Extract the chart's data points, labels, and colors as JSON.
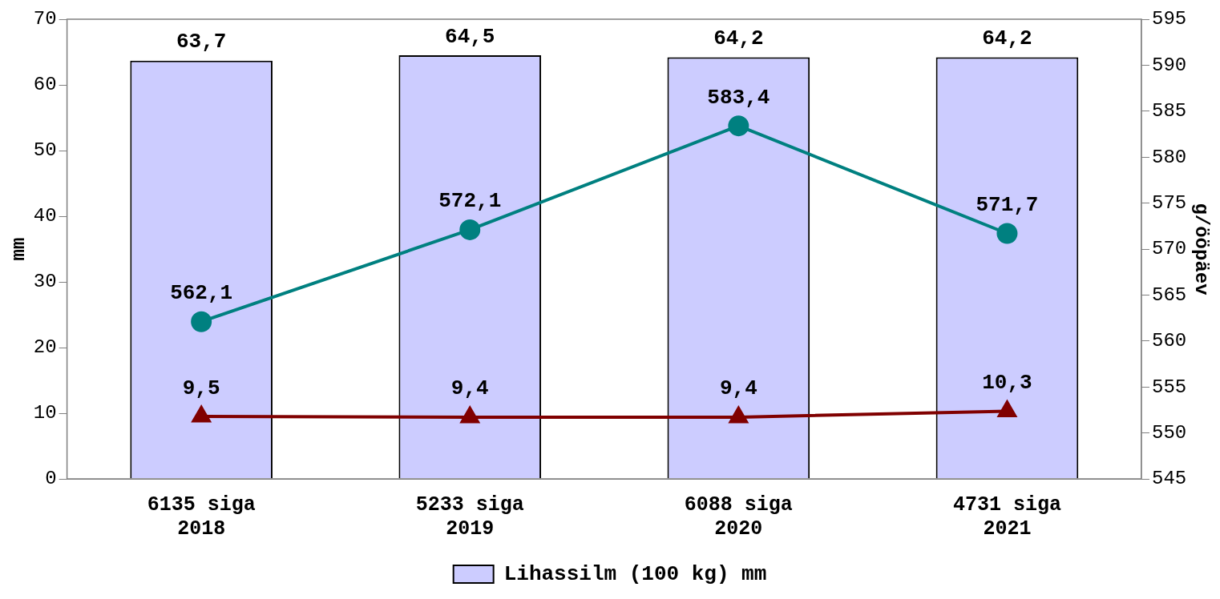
{
  "chart_data": {
    "type": "bar",
    "categories": [
      "6135 siga\n2018",
      "5233 siga\n2019",
      "6088 siga\n2020",
      "4731 siga\n2021"
    ],
    "series": [
      {
        "name": "Lihassilm (100 kg) mm",
        "color": "#ccccff",
        "values": [
          63.7,
          64.5,
          64.2,
          64.2
        ],
        "value_labels": [
          "63,7",
          "64,5",
          "64,2",
          "64,2"
        ]
      },
      {
        "type": "line",
        "axis": "y2",
        "color": "#008080",
        "marker": "circle",
        "values": [
          562.1,
          572.1,
          583.4,
          571.7
        ],
        "value_labels": [
          "562,1",
          "572,1",
          "583,4",
          "571,7"
        ]
      },
      {
        "type": "line",
        "color": "#800000",
        "marker": "triangle",
        "values": [
          9.5,
          9.4,
          9.4,
          10.3
        ],
        "value_labels": [
          "9,5",
          "9,4",
          "9,4",
          "10,3"
        ]
      }
    ],
    "ylabel": "mm",
    "y2label": "g/ööpäev",
    "ylim": [
      0,
      70
    ],
    "yticks": [
      0,
      10,
      20,
      30,
      40,
      50,
      60,
      70
    ],
    "y2lim": [
      545,
      595
    ],
    "y2ticks": [
      545,
      550,
      555,
      560,
      565,
      570,
      575,
      580,
      585,
      590,
      595
    ],
    "grid": false,
    "legend": "bottom",
    "line_style": "solid"
  }
}
